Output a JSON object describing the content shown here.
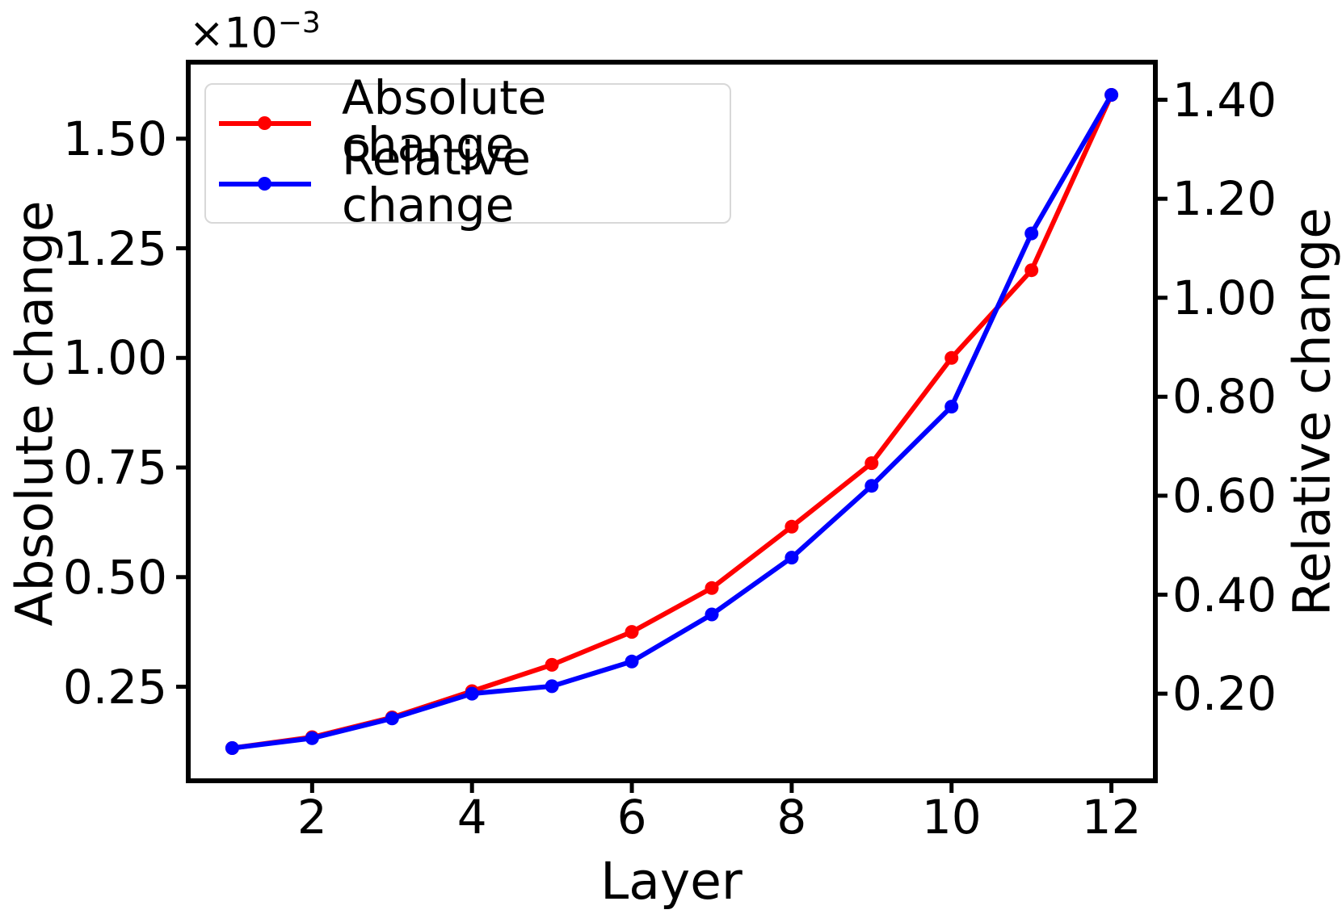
{
  "figure": {
    "offset_base": "×10",
    "offset_exponent": "−3"
  },
  "legend": {
    "position": "upper left",
    "items": [
      {
        "label": "Absolute change",
        "color": "#ff0000"
      },
      {
        "label": "Relative change",
        "color": "#0000ff"
      }
    ]
  },
  "chart_data": {
    "type": "line",
    "title": "",
    "grid": false,
    "legend_position": "upper left",
    "x": [
      1,
      2,
      3,
      4,
      5,
      6,
      7,
      8,
      9,
      10,
      11,
      12
    ],
    "series": [
      {
        "name": "Absolute change",
        "axis": "left",
        "color": "#ff0000",
        "marker": "circle",
        "values": [
          0.11,
          0.135,
          0.18,
          0.24,
          0.3,
          0.375,
          0.475,
          0.615,
          0.76,
          1.0,
          1.2,
          1.6
        ]
      },
      {
        "name": "Relative change",
        "axis": "right",
        "color": "#0000ff",
        "marker": "circle",
        "values": [
          0.09,
          0.11,
          0.15,
          0.2,
          0.215,
          0.265,
          0.36,
          0.475,
          0.62,
          0.78,
          1.13,
          1.41
        ]
      }
    ],
    "x_axis": {
      "label": "Layer",
      "range": [
        0.45,
        12.55
      ],
      "ticks": [
        {
          "value": 2,
          "label": "2"
        },
        {
          "value": 4,
          "label": "4"
        },
        {
          "value": 6,
          "label": "6"
        },
        {
          "value": 8,
          "label": "8"
        },
        {
          "value": 10,
          "label": "10"
        },
        {
          "value": 12,
          "label": "12"
        }
      ]
    },
    "y_axis_left": {
      "label": "Absolute change",
      "offset_text": "×10⁻³",
      "range": [
        0.0355,
        1.6745
      ],
      "ticks": [
        {
          "value": 0.25,
          "label": "0.25"
        },
        {
          "value": 0.5,
          "label": "0.50"
        },
        {
          "value": 0.75,
          "label": "0.75"
        },
        {
          "value": 1.0,
          "label": "1.00"
        },
        {
          "value": 1.25,
          "label": "1.25"
        },
        {
          "value": 1.5,
          "label": "1.50"
        }
      ]
    },
    "y_axis_right": {
      "label": "Relative change",
      "range": [
        0.024,
        1.476
      ],
      "ticks": [
        {
          "value": 0.2,
          "label": "0.20"
        },
        {
          "value": 0.4,
          "label": "0.40"
        },
        {
          "value": 0.6,
          "label": "0.60"
        },
        {
          "value": 0.8,
          "label": "0.80"
        },
        {
          "value": 1.0,
          "label": "1.00"
        },
        {
          "value": 1.2,
          "label": "1.20"
        },
        {
          "value": 1.4,
          "label": "1.40"
        }
      ]
    }
  }
}
